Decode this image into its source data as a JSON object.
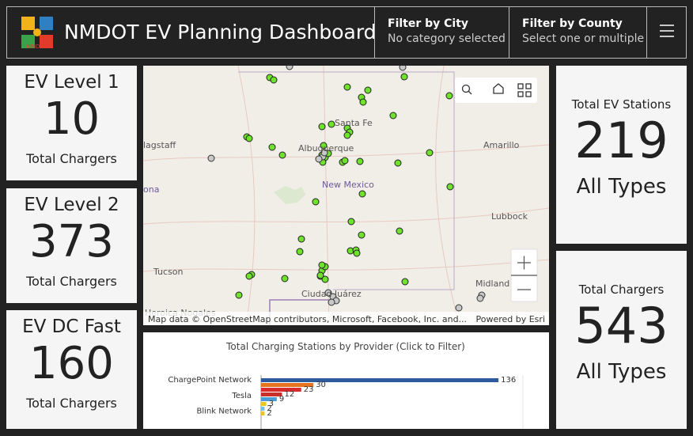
{
  "header": {
    "title": "NMDOT EV Planning Dashboard",
    "logo_text": "NMDOT",
    "filters": [
      {
        "label": "Filter by City",
        "placeholder": "No category selected"
      },
      {
        "label": "Filter by County",
        "placeholder": "Select one or multiple"
      }
    ]
  },
  "left_cards": [
    {
      "title": "EV Level 1",
      "value": "10",
      "caption": "Total Chargers"
    },
    {
      "title": "EV Level 2",
      "value": "373",
      "caption": "Total Chargers"
    },
    {
      "title": "EV DC Fast",
      "value": "160",
      "caption": "Total Chargers"
    }
  ],
  "right_cards": [
    {
      "title": "Total EV Stations",
      "value": "219",
      "caption": "All Types"
    },
    {
      "title": "Total Chargers",
      "value": "543",
      "caption": "All Types"
    }
  ],
  "map": {
    "places": [
      "Santa Fe",
      "Albuquerque",
      "New Mexico",
      "Amarillo",
      "Lubbock",
      "Tucson",
      "Midland",
      "Ciudad Juárez",
      "lagstaff",
      "ona",
      "Heroica Nogales"
    ],
    "attribution": "Map data © OpenStreetMap contributors, Microsoft, Facebook, Inc. and...",
    "powered_by": "Powered by Esri"
  },
  "chart_data": {
    "type": "bar",
    "orientation": "horizontal",
    "title": "Total Charging Stations by Provider (Click to Filter)",
    "categories": [
      "ChargePoint Network",
      null,
      null,
      "Tesla",
      null,
      null,
      "Blink Network",
      null
    ],
    "values": [
      136,
      30,
      23,
      12,
      9,
      3,
      2,
      2
    ],
    "colors": [
      "#2d5b9b",
      "#e8731f",
      "#d92b2b",
      "#c9302c",
      "#4a9bd6",
      "#f0c419",
      "#6cc0e0",
      "#f0c419"
    ],
    "xlim": [
      0,
      150
    ]
  }
}
